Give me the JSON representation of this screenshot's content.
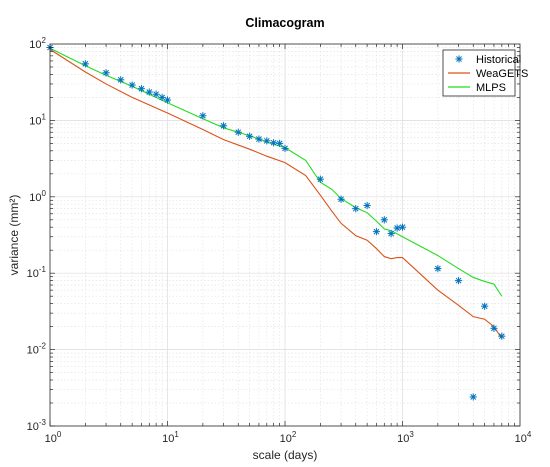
{
  "chart_data": {
    "type": "line",
    "title": "Climacogram",
    "xlabel": "scale (days)",
    "ylabel": "variance (mm²)",
    "xscale": "log",
    "yscale": "log",
    "xlim": [
      1,
      10000
    ],
    "ylim": [
      0.001,
      100
    ],
    "grid": true,
    "minor_grid": true,
    "legend_position": "top-right",
    "x_tick_labels": [
      {
        "value": 1,
        "base": "10",
        "exp": "0"
      },
      {
        "value": 10,
        "base": "10",
        "exp": "1"
      },
      {
        "value": 100,
        "base": "10",
        "exp": "2"
      },
      {
        "value": 1000,
        "base": "10",
        "exp": "3"
      },
      {
        "value": 10000,
        "base": "10",
        "exp": "4"
      }
    ],
    "y_tick_labels": [
      {
        "value": 100,
        "base": "10",
        "exp": "2"
      },
      {
        "value": 10,
        "base": "10",
        "exp": "1"
      },
      {
        "value": 1,
        "base": "10",
        "exp": "0"
      },
      {
        "value": 0.1,
        "base": "10",
        "exp": "-1"
      },
      {
        "value": 0.01,
        "base": "10",
        "exp": "-2"
      },
      {
        "value": 0.001,
        "base": "10",
        "exp": "-3"
      }
    ],
    "series": [
      {
        "name": "Historical",
        "style": "markers",
        "marker": "asterisk",
        "color": "#0072BD",
        "points": [
          [
            1,
            90
          ],
          [
            2,
            55
          ],
          [
            3,
            42
          ],
          [
            4,
            34
          ],
          [
            5,
            29
          ],
          [
            6,
            26
          ],
          [
            7,
            23.5
          ],
          [
            8,
            22
          ],
          [
            9,
            20
          ],
          [
            10,
            18.5
          ],
          [
            20,
            11.5
          ],
          [
            30,
            8.5
          ],
          [
            40,
            7
          ],
          [
            50,
            6.2
          ],
          [
            60,
            5.7
          ],
          [
            70,
            5.4
          ],
          [
            80,
            5.1
          ],
          [
            90,
            5
          ],
          [
            100,
            4.3
          ],
          [
            200,
            1.7
          ],
          [
            300,
            0.93
          ],
          [
            400,
            0.7
          ],
          [
            500,
            0.77
          ],
          [
            600,
            0.35
          ],
          [
            700,
            0.5
          ],
          [
            800,
            0.33
          ],
          [
            900,
            0.39
          ],
          [
            1000,
            0.4
          ],
          [
            2000,
            0.115
          ],
          [
            3000,
            0.08
          ],
          [
            4000,
            0.0024
          ],
          [
            5000,
            0.037
          ],
          [
            6000,
            0.019
          ],
          [
            7000,
            0.015
          ]
        ]
      },
      {
        "name": "WeaGETS",
        "style": "line",
        "color": "#D95319",
        "points": [
          [
            1,
            85
          ],
          [
            2,
            43
          ],
          [
            3,
            30
          ],
          [
            5,
            20
          ],
          [
            10,
            12.5
          ],
          [
            20,
            7.6
          ],
          [
            30,
            5.6
          ],
          [
            50,
            4.2
          ],
          [
            70,
            3.4
          ],
          [
            100,
            2.8
          ],
          [
            150,
            1.9
          ],
          [
            200,
            1.05
          ],
          [
            250,
            0.65
          ],
          [
            300,
            0.45
          ],
          [
            400,
            0.31
          ],
          [
            500,
            0.27
          ],
          [
            600,
            0.21
          ],
          [
            700,
            0.165
          ],
          [
            800,
            0.155
          ],
          [
            900,
            0.16
          ],
          [
            1000,
            0.16
          ],
          [
            2000,
            0.06
          ],
          [
            3000,
            0.038
          ],
          [
            4000,
            0.027
          ],
          [
            5000,
            0.025
          ],
          [
            6000,
            0.02
          ],
          [
            7000,
            0.014
          ]
        ]
      },
      {
        "name": "MLPS",
        "style": "line",
        "color": "#22DD22",
        "points": [
          [
            1,
            88
          ],
          [
            2,
            52
          ],
          [
            3,
            39
          ],
          [
            5,
            28
          ],
          [
            10,
            17
          ],
          [
            20,
            10.5
          ],
          [
            30,
            8
          ],
          [
            50,
            6.3
          ],
          [
            70,
            5.2
          ],
          [
            100,
            4.4
          ],
          [
            150,
            3.0
          ],
          [
            200,
            1.55
          ],
          [
            250,
            1.25
          ],
          [
            300,
            0.95
          ],
          [
            400,
            0.72
          ],
          [
            500,
            0.62
          ],
          [
            600,
            0.48
          ],
          [
            700,
            0.38
          ],
          [
            800,
            0.36
          ],
          [
            1000,
            0.3
          ],
          [
            2000,
            0.17
          ],
          [
            3000,
            0.115
          ],
          [
            4000,
            0.088
          ],
          [
            5000,
            0.078
          ],
          [
            6000,
            0.072
          ],
          [
            7000,
            0.05
          ]
        ]
      }
    ]
  }
}
